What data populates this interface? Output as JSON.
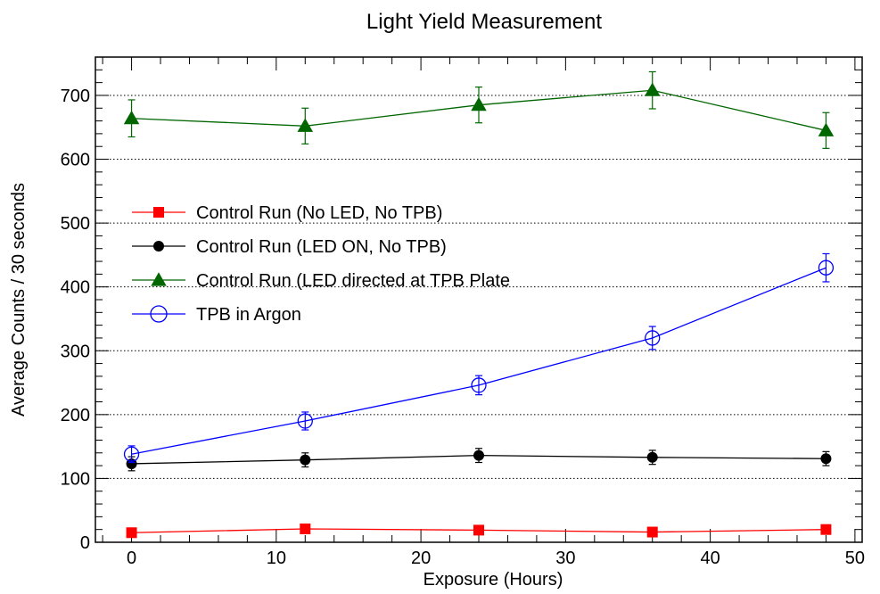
{
  "chart_data": {
    "type": "line",
    "title": "Light Yield Measurement",
    "xlabel": "Exposure (Hours)",
    "ylabel": "Average Counts / 30 seconds",
    "xlim": [
      -2.5,
      50.5
    ],
    "ylim": [
      0,
      760
    ],
    "xticks": [
      0,
      10,
      20,
      30,
      40,
      50
    ],
    "yticks": [
      0,
      100,
      200,
      300,
      400,
      500,
      600,
      700
    ],
    "y_grid": "dotted horizontal lines at major ticks",
    "legend_position": "center-left",
    "x": [
      0,
      12,
      24,
      36,
      48
    ],
    "series": [
      {
        "name": "Control Run (No LED, No TPB)",
        "color": "#ff0000",
        "marker": "filled-square",
        "values": [
          15,
          21,
          19,
          16,
          20
        ],
        "errors": [
          0,
          0,
          0,
          0,
          0
        ]
      },
      {
        "name": "Control Run (LED ON, No TPB)",
        "color": "#000000",
        "marker": "filled-circle",
        "values": [
          123,
          129,
          136,
          133,
          131
        ],
        "errors": [
          11,
          11,
          11,
          11,
          11
        ]
      },
      {
        "name": "Control Run (LED directed at TPB Plate",
        "color": "#006600",
        "marker": "filled-triangle",
        "values": [
          664,
          652,
          685,
          708,
          645
        ],
        "errors": [
          29,
          28,
          28,
          29,
          28
        ]
      },
      {
        "name": "TPB in Argon",
        "color": "#0000ff",
        "marker": "open-circle",
        "values": [
          138,
          190,
          246,
          320,
          430
        ],
        "errors": [
          13,
          14,
          15,
          18,
          22
        ]
      }
    ]
  }
}
